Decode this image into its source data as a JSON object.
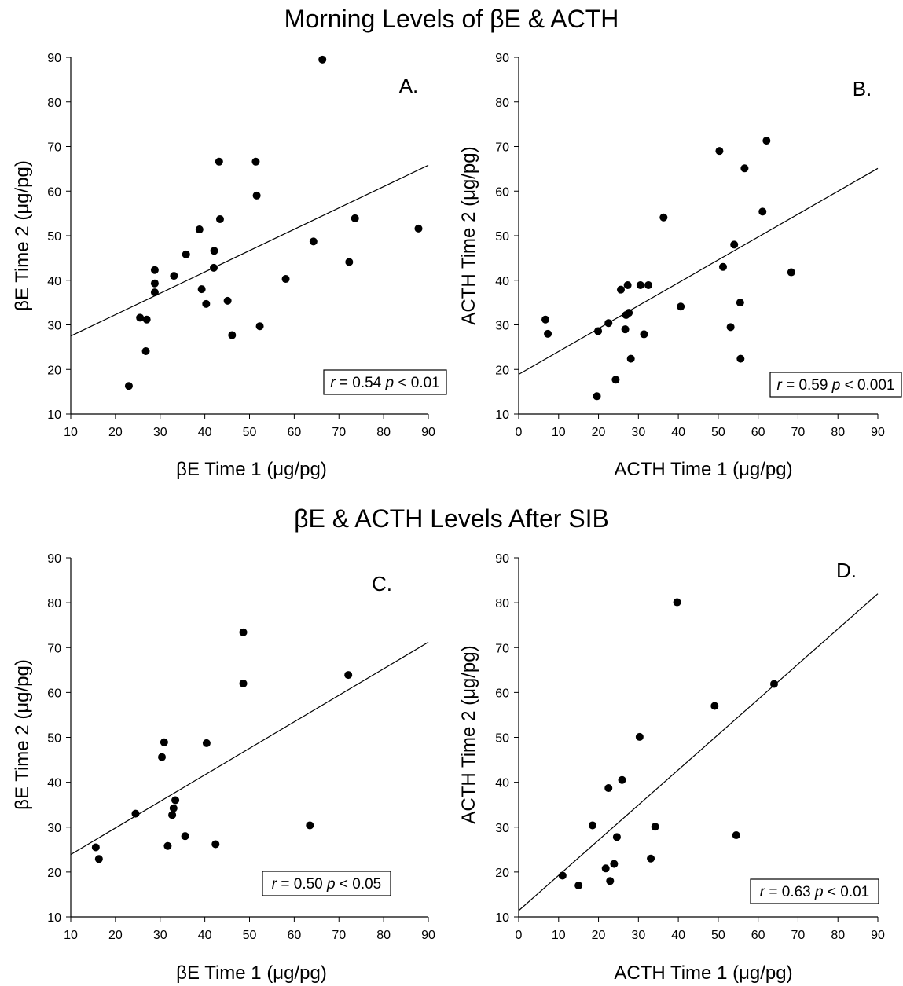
{
  "sections": [
    {
      "title": "Morning Levels of βE & ACTH"
    },
    {
      "title": "βE & ACTH Levels After SIB"
    }
  ],
  "chart_data": [
    {
      "type": "scatter",
      "panel": "A.",
      "xlabel": "βE Time 1 (μg/pg)",
      "ylabel": "βE Time 2 (μg/pg)",
      "xlim": [
        10,
        90
      ],
      "ylim": [
        10,
        90
      ],
      "xticks": [
        10,
        20,
        30,
        40,
        50,
        60,
        70,
        80,
        90
      ],
      "yticks": [
        10,
        20,
        30,
        40,
        50,
        60,
        70,
        80,
        90
      ],
      "stats": {
        "r_label": "r",
        "r_value": "= 0.54",
        "p_label": "p",
        "p_value": "< 0.01"
      },
      "fit_line": [
        [
          10,
          27.5
        ],
        [
          90,
          65.8
        ]
      ],
      "points": [
        [
          23,
          16.3
        ],
        [
          25.5,
          31.6
        ],
        [
          27,
          31.2
        ],
        [
          26.8,
          24.1
        ],
        [
          28.8,
          42.3
        ],
        [
          28.8,
          39.3
        ],
        [
          28.8,
          37.3
        ],
        [
          33.1,
          41.0
        ],
        [
          35.8,
          45.8
        ],
        [
          38.8,
          51.4
        ],
        [
          39.3,
          38.0
        ],
        [
          40.3,
          34.7
        ],
        [
          42.1,
          46.6
        ],
        [
          42,
          42.8
        ],
        [
          43.2,
          66.6
        ],
        [
          43.4,
          53.7
        ],
        [
          45.1,
          35.4
        ],
        [
          46.1,
          27.7
        ],
        [
          51.4,
          66.6
        ],
        [
          51.6,
          59.0
        ],
        [
          52.3,
          29.7
        ],
        [
          58.1,
          40.3
        ],
        [
          64.3,
          48.7
        ],
        [
          66.3,
          89.5
        ],
        [
          72.3,
          44.1
        ],
        [
          73.6,
          53.9
        ],
        [
          87.8,
          51.6
        ]
      ]
    },
    {
      "type": "scatter",
      "panel": "B.",
      "xlabel": "ACTH Time 1 (μg/pg)",
      "ylabel": "ACTH Time 2 (μg/pg)",
      "xlim": [
        0,
        90
      ],
      "ylim": [
        10,
        90
      ],
      "xticks": [
        0,
        10,
        20,
        30,
        40,
        50,
        60,
        70,
        80,
        90
      ],
      "yticks": [
        10,
        20,
        30,
        40,
        50,
        60,
        70,
        80,
        90
      ],
      "stats": {
        "r_label": "r",
        "r_value": "= 0.59",
        "p_label": "p",
        "p_value": "< 0.001"
      },
      "fit_line": [
        [
          0,
          18.9
        ],
        [
          90,
          65.1
        ]
      ],
      "points": [
        [
          6.7,
          31.2
        ],
        [
          7.3,
          28.0
        ],
        [
          19.6,
          14.0
        ],
        [
          19.9,
          28.6
        ],
        [
          22.5,
          30.4
        ],
        [
          24.3,
          17.7
        ],
        [
          25.6,
          37.9
        ],
        [
          26.7,
          29.0
        ],
        [
          26.9,
          32.2
        ],
        [
          27.3,
          38.9
        ],
        [
          27.6,
          32.7
        ],
        [
          28.1,
          22.4
        ],
        [
          30.5,
          38.9
        ],
        [
          31.4,
          27.9
        ],
        [
          32.5,
          38.9
        ],
        [
          36.3,
          54.1
        ],
        [
          40.6,
          34.1
        ],
        [
          50.3,
          69.0
        ],
        [
          51.2,
          43.0
        ],
        [
          53.1,
          29.5
        ],
        [
          54.0,
          48.0
        ],
        [
          55.5,
          35.0
        ],
        [
          55.6,
          22.4
        ],
        [
          56.6,
          65.1
        ],
        [
          61.1,
          55.4
        ],
        [
          62.1,
          71.3
        ],
        [
          68.3,
          41.8
        ]
      ]
    },
    {
      "type": "scatter",
      "panel": "C.",
      "xlabel": "βE Time 1 (μg/pg)",
      "ylabel": "βE Time 2 (μg/pg)",
      "xlim": [
        10,
        90
      ],
      "ylim": [
        10,
        90
      ],
      "xticks": [
        10,
        20,
        30,
        40,
        50,
        60,
        70,
        80,
        90
      ],
      "yticks": [
        10,
        20,
        30,
        40,
        50,
        60,
        70,
        80,
        90
      ],
      "stats": {
        "r_label": "r",
        "r_value": "= 0.50",
        "p_label": "p",
        "p_value": "< 0.05"
      },
      "fit_line": [
        [
          10,
          23.9
        ],
        [
          90,
          71.2
        ]
      ],
      "points": [
        [
          15.6,
          25.5
        ],
        [
          16.3,
          22.9
        ],
        [
          24.5,
          33.0
        ],
        [
          30.4,
          45.6
        ],
        [
          30.9,
          48.9
        ],
        [
          31.7,
          25.8
        ],
        [
          32.7,
          32.7
        ],
        [
          33.0,
          34.2
        ],
        [
          33.4,
          36.0
        ],
        [
          35.6,
          28.0
        ],
        [
          40.4,
          48.7
        ],
        [
          42.4,
          26.2
        ],
        [
          48.6,
          62.0
        ],
        [
          48.6,
          73.4
        ],
        [
          63.5,
          30.4
        ],
        [
          72.1,
          63.9
        ]
      ]
    },
    {
      "type": "scatter",
      "panel": "D.",
      "xlabel": "ACTH Time 1 (μg/pg)",
      "ylabel": "ACTH Time 2 (μg/pg)",
      "xlim": [
        0,
        90
      ],
      "ylim": [
        10,
        90
      ],
      "xticks": [
        0,
        10,
        20,
        30,
        40,
        50,
        60,
        70,
        80,
        90
      ],
      "yticks": [
        10,
        20,
        30,
        40,
        50,
        60,
        70,
        80,
        90
      ],
      "stats": {
        "r_label": "r",
        "r_value": "= 0.63",
        "p_label": "p",
        "p_value": "< 0.01"
      },
      "fit_line": [
        [
          0,
          11.4
        ],
        [
          90,
          82.0
        ]
      ],
      "points": [
        [
          11.0,
          19.2
        ],
        [
          15.0,
          17.0
        ],
        [
          18.5,
          30.4
        ],
        [
          21.8,
          20.8
        ],
        [
          22.5,
          38.7
        ],
        [
          22.9,
          18.0
        ],
        [
          23.9,
          21.8
        ],
        [
          24.6,
          27.8
        ],
        [
          25.9,
          40.5
        ],
        [
          30.3,
          50.1
        ],
        [
          33.1,
          23.0
        ],
        [
          34.2,
          30.1
        ],
        [
          39.7,
          80.1
        ],
        [
          49.1,
          57.0
        ],
        [
          54.5,
          28.2
        ],
        [
          64.0,
          61.9
        ]
      ]
    }
  ]
}
